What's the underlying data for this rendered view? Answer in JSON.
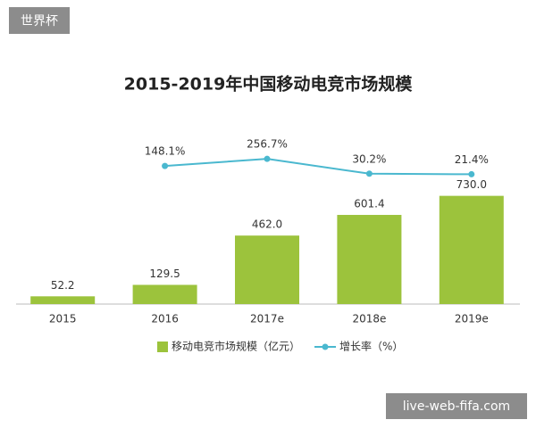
{
  "watermarks": {
    "top_left": "世界杯",
    "bottom_right": "live-web-fifa.com"
  },
  "chart_data": {
    "type": "bar",
    "title": "2015-2019年中国移动电竞市场规模",
    "categories": [
      "2015",
      "2016",
      "2017e",
      "2018e",
      "2019e"
    ],
    "series": [
      {
        "name": "移动电竞市场规模（亿元）",
        "type": "bar",
        "color": "#9cc33c",
        "values": [
          52.2,
          129.5,
          462.0,
          601.4,
          730.0
        ],
        "value_labels": [
          "52.2",
          "129.5",
          "462.0",
          "601.4",
          "730.0"
        ]
      },
      {
        "name": "增长率（%）",
        "type": "line",
        "axis": "y2",
        "color": "#4ab8cf",
        "values": [
          null,
          148.1,
          256.7,
          30.2,
          21.4
        ],
        "value_labels": [
          null,
          "148.1%",
          "256.7%",
          "30.2%",
          "21.4%"
        ]
      }
    ],
    "ylim": [
      0,
      800
    ],
    "y2lim": [
      0,
      300
    ],
    "grid": false,
    "legend": "bottom"
  }
}
